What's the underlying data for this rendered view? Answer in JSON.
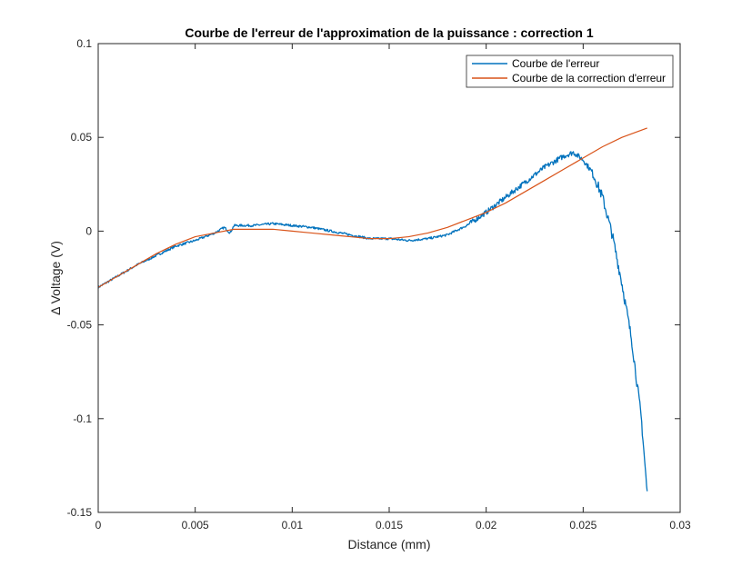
{
  "chart_data": {
    "type": "line",
    "title": "Courbe de l'erreur de l'approximation de la puissance : correction 1",
    "xlabel": "Distance (mm)",
    "ylabel": "Δ Voltage (V)",
    "xlim": [
      0,
      0.03
    ],
    "ylim": [
      -0.15,
      0.1
    ],
    "x_ticks": [
      0,
      0.005,
      0.01,
      0.015,
      0.02,
      0.025,
      0.03
    ],
    "x_tick_labels": [
      "0",
      "0.005",
      "0.01",
      "0.015",
      "0.02",
      "0.025",
      "0.03"
    ],
    "y_ticks": [
      -0.15,
      -0.1,
      -0.05,
      0,
      0.05,
      0.1
    ],
    "y_tick_labels": [
      "-0.15",
      "-0.1",
      "-0.05",
      "0",
      "0.05",
      "0.1"
    ],
    "grid": false,
    "legend_position": "top-right",
    "series": [
      {
        "name": "Courbe de l'erreur",
        "color": "#0072BD",
        "noisy": true,
        "x": [
          0,
          0.001,
          0.002,
          0.003,
          0.004,
          0.005,
          0.006,
          0.0065,
          0.0068,
          0.007,
          0.008,
          0.009,
          0.01,
          0.011,
          0.012,
          0.013,
          0.014,
          0.015,
          0.016,
          0.017,
          0.018,
          0.019,
          0.02,
          0.021,
          0.022,
          0.023,
          0.024,
          0.0245,
          0.025,
          0.0255,
          0.026,
          0.0265,
          0.027,
          0.0275,
          0.028,
          0.0283
        ],
        "y": [
          -0.03,
          -0.024,
          -0.018,
          -0.013,
          -0.008,
          -0.005,
          -0.001,
          0.002,
          -0.001,
          0.003,
          0.003,
          0.004,
          0.003,
          0.002,
          0.0,
          -0.002,
          -0.004,
          -0.004,
          -0.005,
          -0.004,
          -0.002,
          0.003,
          0.01,
          0.018,
          0.026,
          0.034,
          0.04,
          0.042,
          0.038,
          0.031,
          0.018,
          -0.002,
          -0.028,
          -0.058,
          -0.1,
          -0.14
        ]
      },
      {
        "name": "Courbe de la correction d'erreur",
        "color": "#D95319",
        "noisy": false,
        "x": [
          0,
          0.001,
          0.002,
          0.003,
          0.004,
          0.005,
          0.006,
          0.007,
          0.008,
          0.009,
          0.01,
          0.011,
          0.012,
          0.013,
          0.014,
          0.015,
          0.016,
          0.017,
          0.018,
          0.019,
          0.02,
          0.021,
          0.022,
          0.023,
          0.024,
          0.025,
          0.026,
          0.027,
          0.0283
        ],
        "y": [
          -0.03,
          -0.024,
          -0.018,
          -0.012,
          -0.007,
          -0.003,
          -0.001,
          0.001,
          0.001,
          0.001,
          0.0,
          -0.001,
          -0.002,
          -0.003,
          -0.004,
          -0.004,
          -0.003,
          -0.001,
          0.002,
          0.006,
          0.01,
          0.015,
          0.021,
          0.027,
          0.033,
          0.039,
          0.045,
          0.05,
          0.055
        ]
      }
    ]
  }
}
